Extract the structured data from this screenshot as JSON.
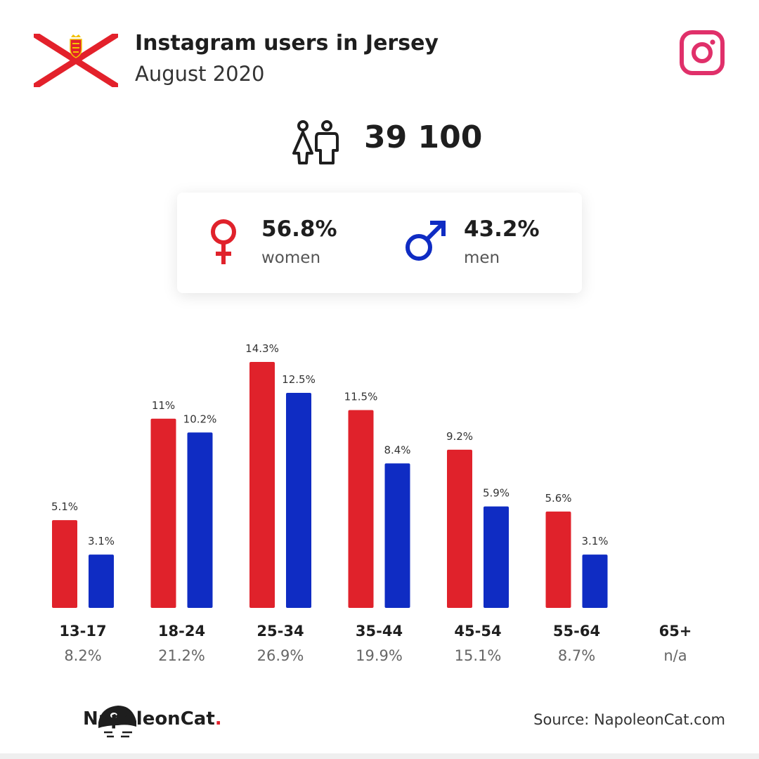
{
  "header": {
    "title": "Instagram users in Jersey",
    "subtitle": "August 2020"
  },
  "icons": {
    "flag": "jersey-flag-icon",
    "instagram": "instagram-icon",
    "people": "people-icon",
    "female": "female-icon",
    "male": "male-icon",
    "logo": "napoleoncat-logo-icon"
  },
  "total": {
    "value": "39 100"
  },
  "gender": {
    "women": {
      "pct": "56.8%",
      "label": "women"
    },
    "men": {
      "pct": "43.2%",
      "label": "men"
    }
  },
  "colors": {
    "women": "#e0222b",
    "men": "#0f2cc3",
    "instagram": "#e0306a",
    "flag_saltire": "#e3212b"
  },
  "chart_data": {
    "type": "bar",
    "categories": [
      "13-17",
      "18-24",
      "25-34",
      "35-44",
      "45-54",
      "55-64",
      "65+"
    ],
    "category_totals": [
      "8.2%",
      "21.2%",
      "26.9%",
      "19.9%",
      "15.1%",
      "8.7%",
      "n/a"
    ],
    "series": [
      {
        "values": [
          5.1,
          11,
          14.3,
          11.5,
          9.2,
          5.6,
          null
        ],
        "labels": [
          "5.1%",
          "11%",
          "14.3%",
          "11.5%",
          "9.2%",
          "5.6%",
          ""
        ]
      },
      {
        "values": [
          3.1,
          10.2,
          12.5,
          8.4,
          5.9,
          3.1,
          null
        ],
        "labels": [
          "3.1%",
          "10.2%",
          "12.5%",
          "8.4%",
          "5.9%",
          "3.1%",
          ""
        ]
      }
    ],
    "ylim": [
      0,
      14.3
    ]
  },
  "footer": {
    "brand": "NapoleonCat",
    "brand_dot": ".",
    "source": "Source: NapoleonCat.com"
  }
}
